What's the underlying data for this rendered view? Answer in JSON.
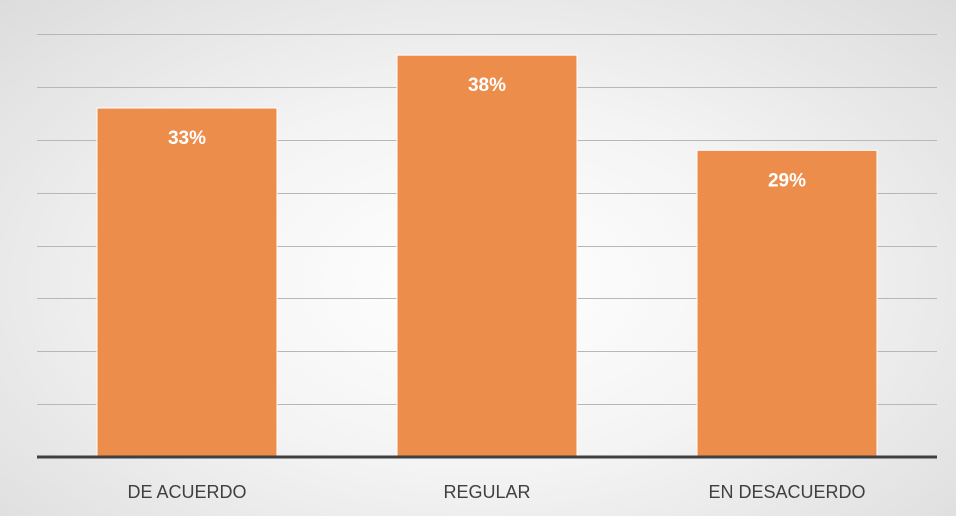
{
  "chart_data": {
    "type": "bar",
    "categories": [
      "DE ACUERDO",
      "REGULAR",
      "EN DESACUERDO"
    ],
    "values": [
      33,
      38,
      29
    ],
    "data_labels": [
      "33%",
      "38%",
      "29%"
    ],
    "ylim": [
      0,
      40
    ],
    "y_gridlines": [
      0,
      5,
      10,
      15,
      20,
      25,
      30,
      35,
      40
    ],
    "title": "",
    "xlabel": "",
    "ylabel": "",
    "grid": true,
    "legend": "none",
    "colors": {
      "bar": "#ed8d4c",
      "bar_border": "#ffffff",
      "axis": "#404040",
      "grid": "#b7b7b7"
    }
  }
}
